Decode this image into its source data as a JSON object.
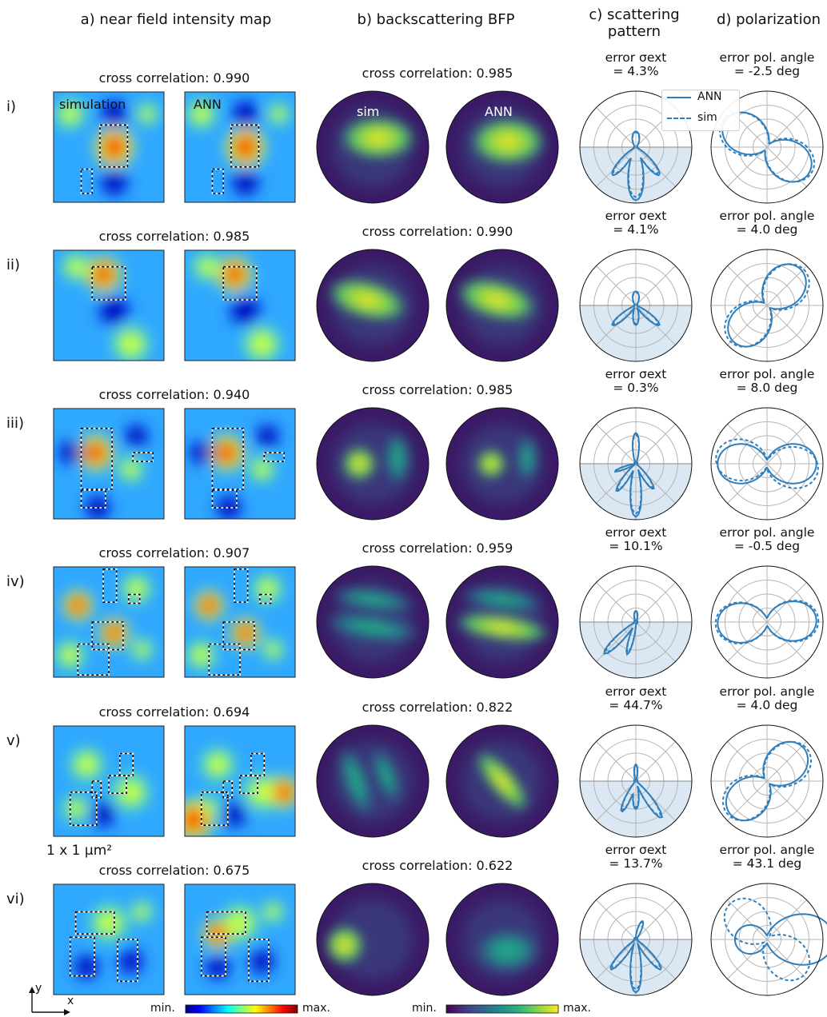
{
  "panels": {
    "a": "a) near field intensity map",
    "b": "b) backscattering BFP",
    "c_line1": "c) scattering",
    "c_line2": "pattern",
    "d": "d) polarization"
  },
  "labels": {
    "simulation": "simulation",
    "ann": "ANN",
    "sim": "sim",
    "scale": "1 x 1 µm²",
    "axis_x": "x",
    "axis_y": "y",
    "cbar_min": "min.",
    "cbar_max": "max.",
    "legend_ann": "ANN",
    "legend_sim": "sim"
  },
  "colors": {
    "ann_line": "#2f7fbd",
    "sim_line": "#2f7fbd",
    "shade": "#dbe8f3"
  },
  "chart_data": {
    "type": "table",
    "rows": [
      {
        "label": "i)",
        "nf_cc": "cross correlation: 0.990",
        "bfp_cc": "cross correlation: 0.985",
        "err_line1": "error σext",
        "err_sigma": "= 4.3%",
        "pol_line1": "error pol. angle",
        "pol_err": "= -2.5 deg",
        "nf_cc_value": 0.99,
        "bfp_cc_value": 0.985,
        "sigma_ext_error_pct": 4.3,
        "pol_angle_error_deg": -2.5
      },
      {
        "label": "ii)",
        "nf_cc": "cross correlation: 0.985",
        "bfp_cc": "cross correlation: 0.990",
        "err_line1": "error σext",
        "err_sigma": "= 4.1%",
        "pol_line1": "error pol. angle",
        "pol_err": "= 4.0 deg",
        "nf_cc_value": 0.985,
        "bfp_cc_value": 0.99,
        "sigma_ext_error_pct": 4.1,
        "pol_angle_error_deg": 4.0
      },
      {
        "label": "iii)",
        "nf_cc": "cross correlation: 0.940",
        "bfp_cc": "cross correlation: 0.985",
        "err_line1": "error σext",
        "err_sigma": "= 0.3%",
        "pol_line1": "error pol. angle",
        "pol_err": "= 8.0 deg",
        "nf_cc_value": 0.94,
        "bfp_cc_value": 0.985,
        "sigma_ext_error_pct": 0.3,
        "pol_angle_error_deg": 8.0
      },
      {
        "label": "iv)",
        "nf_cc": "cross correlation: 0.907",
        "bfp_cc": "cross correlation: 0.959",
        "err_line1": "error σext",
        "err_sigma": "= 10.1%",
        "pol_line1": "error pol. angle",
        "pol_err": "= -0.5 deg",
        "nf_cc_value": 0.907,
        "bfp_cc_value": 0.959,
        "sigma_ext_error_pct": 10.1,
        "pol_angle_error_deg": -0.5
      },
      {
        "label": "v)",
        "nf_cc": "cross correlation: 0.694",
        "bfp_cc": "cross correlation: 0.822",
        "err_line1": "error σext",
        "err_sigma": "= 44.7%",
        "pol_line1": "error pol. angle",
        "pol_err": "= 4.0 deg",
        "nf_cc_value": 0.694,
        "bfp_cc_value": 0.822,
        "sigma_ext_error_pct": 44.7,
        "pol_angle_error_deg": 4.0
      },
      {
        "label": "vi)",
        "nf_cc": "cross correlation: 0.675",
        "bfp_cc": "cross correlation: 0.622",
        "err_line1": "error σext",
        "err_sigma": "= 13.7%",
        "pol_line1": "error pol. angle",
        "pol_err": "= 43.1 deg",
        "nf_cc_value": 0.675,
        "bfp_cc_value": 0.622,
        "sigma_ext_error_pct": 13.7,
        "pol_angle_error_deg": 43.1
      }
    ],
    "polarization": {
      "ann_angle_deg": [
        -32,
        48,
        0,
        2,
        43,
        0
      ],
      "sim_angle_deg": [
        -29,
        44,
        -8,
        2,
        39,
        -43
      ]
    }
  }
}
